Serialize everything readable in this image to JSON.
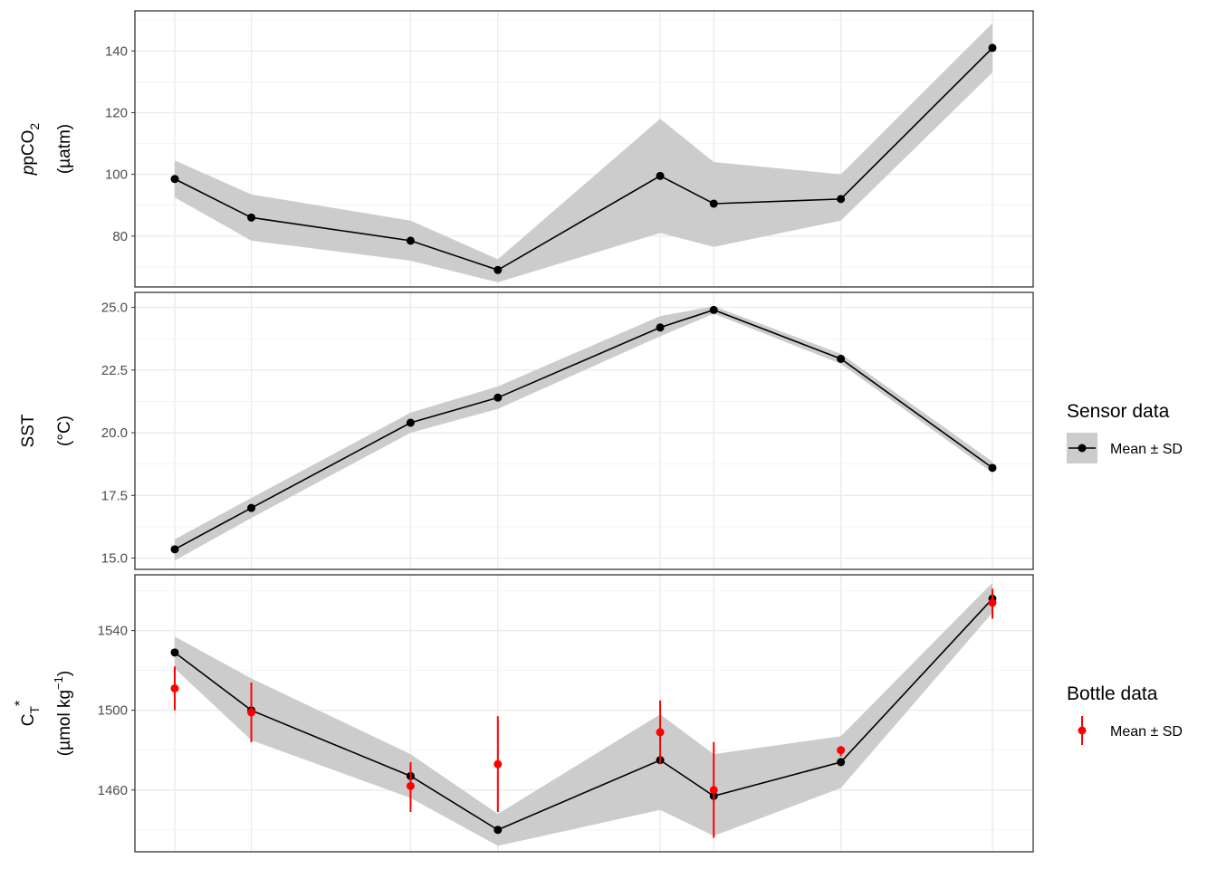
{
  "chart_data": [
    {
      "type": "line",
      "panel": "pCO2",
      "ylabel_main": "pCO",
      "ylabel_prefix": "p",
      "ylabel_sub": "2",
      "ylabel_units": "(µatm)",
      "yticks": [
        80,
        100,
        120,
        140
      ],
      "ylim": [
        63.5,
        153
      ],
      "x": [
        1,
        2,
        3,
        4,
        5,
        6,
        7,
        8
      ],
      "series": [
        {
          "legend": "sensor",
          "mean": [
            98.5,
            86,
            78.5,
            69,
            99.5,
            90.5,
            92,
            141
          ],
          "sd_low": [
            92.5,
            78.5,
            72,
            65,
            81,
            76.5,
            85,
            133
          ],
          "sd_high": [
            104.5,
            93.5,
            85,
            72.5,
            118,
            104,
            100,
            149
          ]
        }
      ]
    },
    {
      "type": "line",
      "panel": "SST",
      "ylabel_main": "SST",
      "ylabel_units": "(°C)",
      "yticks": [
        15.0,
        17.5,
        20.0,
        22.5,
        25.0
      ],
      "ytick_labels": [
        "15.0",
        "17.5",
        "20.0",
        "22.5",
        "25.0"
      ],
      "ylim": [
        14.55,
        25.6
      ],
      "x": [
        1,
        2,
        3,
        4,
        5,
        6,
        7,
        8
      ],
      "series": [
        {
          "legend": "sensor",
          "mean": [
            15.35,
            17.0,
            20.4,
            21.4,
            24.2,
            24.9,
            22.95,
            18.6
          ],
          "sd_low": [
            14.9,
            16.6,
            20.0,
            20.95,
            23.85,
            24.75,
            22.75,
            18.4
          ],
          "sd_high": [
            15.75,
            17.4,
            20.8,
            21.85,
            24.65,
            25.05,
            23.15,
            18.85
          ]
        }
      ]
    },
    {
      "type": "line",
      "panel": "CT*",
      "ylabel_main": "C",
      "ylabel_sub": "T",
      "ylabel_sup": "*",
      "ylabel_units": "(µmol kg",
      "ylabel_units_sup": "−1",
      "ylabel_units_close": ")",
      "yticks": [
        1460,
        1500,
        1540
      ],
      "ylim": [
        1429,
        1568
      ],
      "x": [
        1,
        2,
        3,
        4,
        5,
        6,
        7,
        8
      ],
      "series": [
        {
          "legend": "sensor",
          "mean": [
            1529,
            1500,
            1467,
            1440,
            1475,
            1457,
            1474,
            1556
          ],
          "sd_low": [
            1521,
            1485,
            1456,
            1432,
            1450,
            1437,
            1461,
            1549
          ],
          "sd_high": [
            1537,
            1516,
            1478,
            1448,
            1498,
            1478,
            1487,
            1564
          ]
        },
        {
          "legend": "bottle",
          "color": "#ff0000",
          "mean": [
            1511,
            1499,
            1462,
            1473,
            1489,
            1460,
            1480,
            1554
          ],
          "sd_low": [
            1500,
            1484,
            1449,
            1449,
            1473,
            1436,
            1477,
            1546
          ],
          "sd_high": [
            1522,
            1514,
            1474,
            1497,
            1505,
            1484,
            1482,
            1561
          ]
        }
      ]
    }
  ],
  "x_positions": [
    1,
    1.5,
    2.54,
    3.11,
    4.17,
    4.52,
    5.35,
    6.34
  ],
  "legends": {
    "sensor": {
      "title": "Sensor data",
      "label": "Mean ± SD",
      "color": "#000000",
      "band_color": "#cccccc"
    },
    "bottle": {
      "title": "Bottle data",
      "label": "Mean ± SD",
      "color": "#ff0000"
    }
  }
}
